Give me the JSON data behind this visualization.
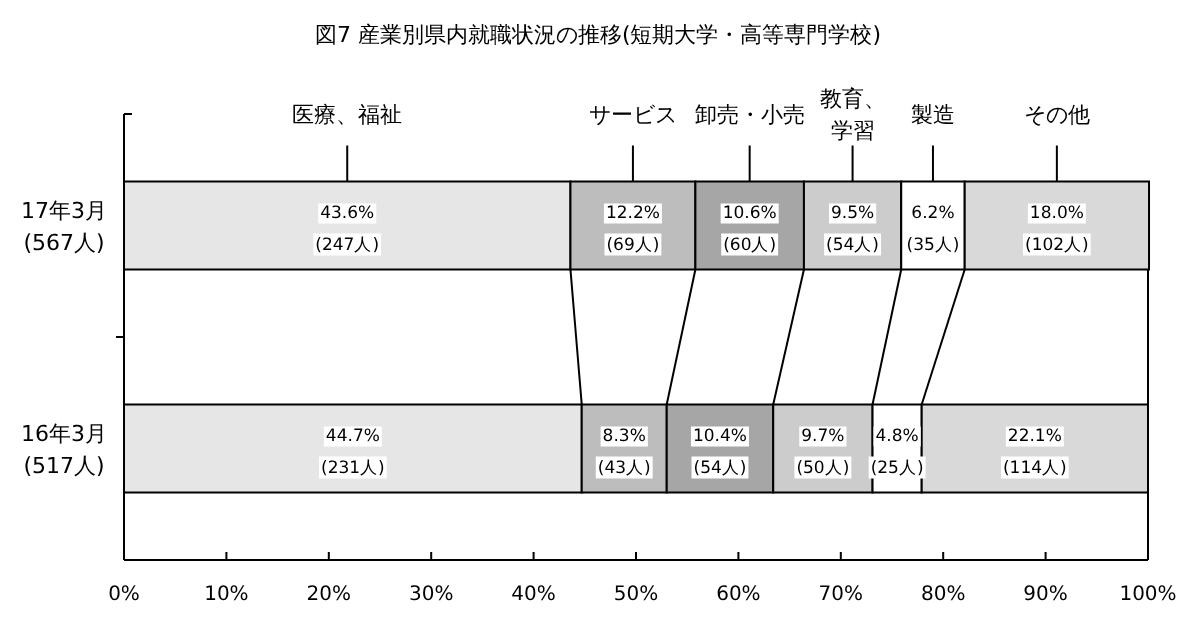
{
  "chart_data": {
    "type": "bar",
    "orientation": "horizontal",
    "stacked": true,
    "title": "図7 産業別県内就職状況の推移(短期大学・高等専門学校)",
    "categories": [
      "17年3月 (567人)",
      "16年3月 (517人)"
    ],
    "series": [
      {
        "name": "医療、福祉",
        "color": "#e6e6e6",
        "values": [
          43.6,
          44.7
        ],
        "value_labels": [
          "43.6% (247人)",
          "44.7% (231人)"
        ]
      },
      {
        "name": "サービス",
        "color": "#bdbdbd",
        "values": [
          12.2,
          8.3
        ],
        "value_labels": [
          "12.2% (69人)",
          "8.3% (43人)"
        ]
      },
      {
        "name": "卸売・小売",
        "color": "#a6a6a6",
        "values": [
          10.6,
          10.4
        ],
        "value_labels": [
          "10.6% (60人)",
          "10.4% (54人)"
        ]
      },
      {
        "name": "教育、学習",
        "color": "#cccccc",
        "values": [
          9.5,
          9.7
        ],
        "value_labels": [
          "9.5% (54人)",
          "9.7% (50人)"
        ]
      },
      {
        "name": "製造",
        "color": "#ffffff",
        "values": [
          6.2,
          4.8
        ],
        "value_labels": [
          "6.2% (35人)",
          "4.8% (25人)"
        ]
      },
      {
        "name": "その他",
        "color": "#d9d9d9",
        "values": [
          18.0,
          22.1
        ],
        "value_labels": [
          "18.0% (102人)",
          "22.1% (114人)"
        ]
      }
    ],
    "xlim": [
      0,
      100
    ],
    "xticks": [
      {
        "value": 0,
        "label": "0%"
      },
      {
        "value": 10,
        "label": "10%"
      },
      {
        "value": 20,
        "label": "20%"
      },
      {
        "value": 30,
        "label": "30%"
      },
      {
        "value": 40,
        "label": "40%"
      },
      {
        "value": 50,
        "label": "50%"
      },
      {
        "value": 60,
        "label": "60%"
      },
      {
        "value": 70,
        "label": "70%"
      },
      {
        "value": 80,
        "label": "80%"
      },
      {
        "value": 90,
        "label": "90%"
      },
      {
        "value": 100,
        "label": "100%"
      }
    ],
    "grid": false
  }
}
